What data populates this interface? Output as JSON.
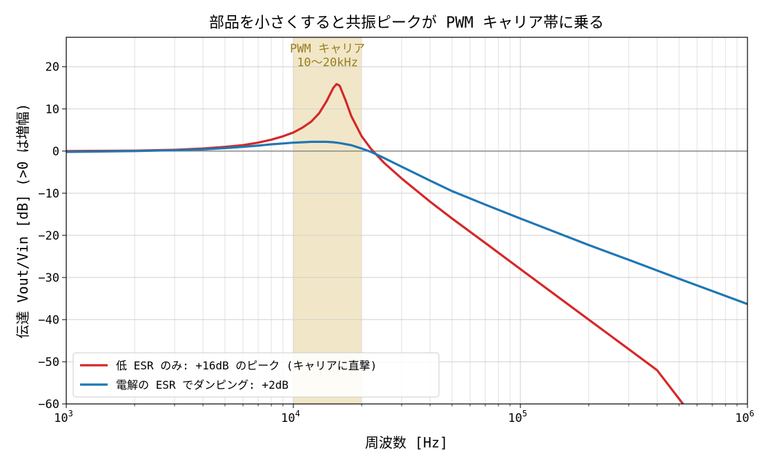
{
  "chart_data": {
    "type": "line",
    "title": "部品を小さくすると共振ピークが PWM キャリア帯に乗る",
    "xlabel": "周波数 [Hz]",
    "ylabel": "伝達 Vout/Vin [dB] (>0 は増幅)",
    "xscale": "log",
    "xlim": [
      1000,
      1000000
    ],
    "ylim": [
      -60,
      27
    ],
    "x_ticks": [
      {
        "value": 1000,
        "base": "10",
        "exp": "3"
      },
      {
        "value": 10000,
        "base": "10",
        "exp": "4"
      },
      {
        "value": 100000,
        "base": "10",
        "exp": "5"
      },
      {
        "value": 1000000,
        "base": "10",
        "exp": "6"
      }
    ],
    "y_ticks": [
      {
        "value": 20,
        "label": "20"
      },
      {
        "value": 10,
        "label": "10"
      },
      {
        "value": 0,
        "label": "0"
      },
      {
        "value": -10,
        "label": "−10"
      },
      {
        "value": -20,
        "label": "−20"
      },
      {
        "value": -30,
        "label": "−30"
      },
      {
        "value": -40,
        "label": "−40"
      },
      {
        "value": -50,
        "label": "−50"
      },
      {
        "value": -60,
        "label": "−60"
      }
    ],
    "grid": true,
    "reference_line_y": 0,
    "band": {
      "x0": 10000,
      "x1": 20000,
      "color": "#e8d7a3",
      "label_line1": "PWM キャリア",
      "label_line2": "10〜20kHz"
    },
    "legend_position": "lower-left",
    "series": [
      {
        "name": "低 ESR のみ: +16dB のピーク (キャリアに直撃)",
        "color": "#d62728",
        "x": [
          1000,
          2000,
          3000,
          4000,
          5000,
          6000,
          7000,
          8000,
          9000,
          10000,
          11000,
          12000,
          13000,
          14000,
          15000,
          15500,
          16000,
          17000,
          18000,
          20000,
          22000,
          25000,
          30000,
          40000,
          50000,
          70000,
          100000,
          200000,
          300000,
          400000,
          520000
        ],
        "y": [
          0.0,
          0.1,
          0.3,
          0.6,
          1.0,
          1.4,
          2.0,
          2.7,
          3.5,
          4.4,
          5.6,
          7.0,
          9.0,
          11.8,
          15.0,
          15.9,
          15.5,
          12.0,
          8.3,
          3.5,
          0.5,
          -2.7,
          -6.5,
          -12.0,
          -16.0,
          -21.8,
          -28.0,
          -40.0,
          -47.0,
          -52.0,
          -60.0
        ]
      },
      {
        "name": "電解の ESR でダンピング: +2dB",
        "color": "#1f77b4",
        "x": [
          1000,
          2000,
          3000,
          4000,
          5000,
          6000,
          7000,
          8000,
          9000,
          10000,
          11000,
          12000,
          13000,
          14000,
          15000,
          16000,
          18000,
          20000,
          22000,
          25000,
          30000,
          40000,
          50000,
          70000,
          100000,
          200000,
          300000,
          500000,
          1000000
        ],
        "y": [
          -0.2,
          0.0,
          0.2,
          0.4,
          0.7,
          1.0,
          1.3,
          1.6,
          1.8,
          2.0,
          2.1,
          2.2,
          2.2,
          2.2,
          2.1,
          1.9,
          1.4,
          0.6,
          -0.2,
          -1.6,
          -3.7,
          -7.0,
          -9.5,
          -12.7,
          -16.0,
          -22.3,
          -25.8,
          -30.3,
          -36.3
        ]
      }
    ]
  }
}
